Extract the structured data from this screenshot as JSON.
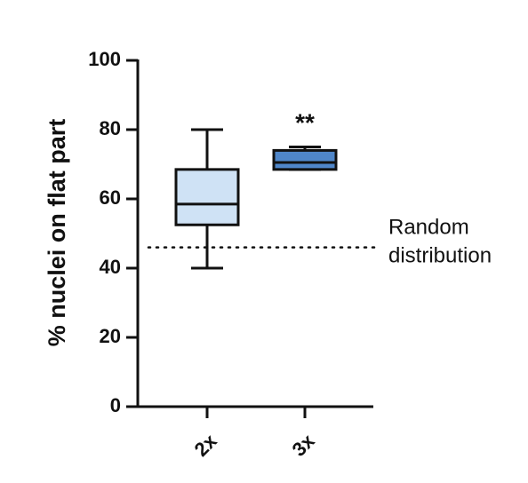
{
  "chart_data": {
    "type": "box",
    "title": "",
    "xlabel": "",
    "ylabel": "% nuclei on flat part",
    "ylim": [
      0,
      100
    ],
    "yticks": [
      0,
      20,
      40,
      60,
      80,
      100
    ],
    "ytick_labels": [
      "0",
      "20",
      "40",
      "60",
      "80",
      "100"
    ],
    "categories": [
      "2x",
      "3x"
    ],
    "boxes": [
      {
        "category": "2x",
        "min": 40,
        "q1": 52.5,
        "median": 58.5,
        "q3": 68.5,
        "max": 80,
        "fill": "#cfe2f5",
        "annotation": ""
      },
      {
        "category": "3x",
        "min": 68.5,
        "q1": 68.5,
        "median": 70.5,
        "q3": 74,
        "max": 75,
        "fill": "#4f86c9",
        "annotation": "**"
      }
    ],
    "reference_line": {
      "y": 46,
      "label_lines": [
        "Random",
        "distribution"
      ]
    },
    "grid": false
  }
}
